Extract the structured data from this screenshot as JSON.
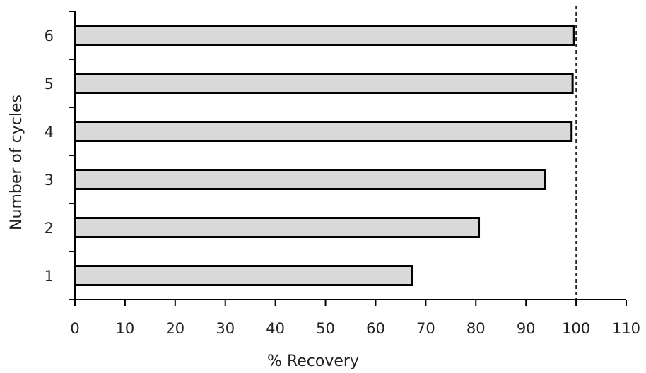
{
  "chart_data": {
    "type": "bar",
    "orientation": "horizontal",
    "categories": [
      "1",
      "2",
      "3",
      "4",
      "5",
      "6"
    ],
    "values": [
      67.3,
      80.6,
      93.8,
      99.1,
      99.3,
      99.6
    ],
    "xlabel": "% Recovery",
    "ylabel": "Number of cycles",
    "xlim": [
      0,
      110
    ],
    "xticks": [
      0,
      10,
      20,
      30,
      40,
      50,
      60,
      70,
      80,
      90,
      100,
      110
    ],
    "reference_line": {
      "x": 100,
      "style": "dashed"
    },
    "grid": false,
    "legend": "none",
    "colors": {
      "bar_fill": "#d9d9d9",
      "bar_stroke": "#000000"
    }
  }
}
